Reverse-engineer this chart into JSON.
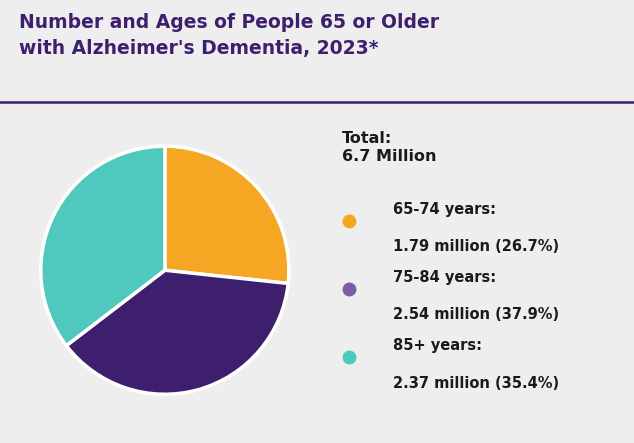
{
  "title_line1": "Number and Ages of People 65 or Older",
  "title_line2": "with Alzheimer's Dementia, 2023*",
  "title_color": "#3d1f6e",
  "title_fontsize": 13.5,
  "background_color": "#eeeeee",
  "title_bg_color": "#ffffff",
  "total_label": "Total:\n6.7 Million",
  "slices": [
    {
      "label": "65-74 years:",
      "sublabel": "1.79 million (26.7%)",
      "value": 26.7,
      "color": "#f5a623",
      "dot_color": "#f5a623"
    },
    {
      "label": "75-84 years:",
      "sublabel": "2.54 million (37.9%)",
      "value": 37.9,
      "color": "#3d1f6e",
      "dot_color": "#7b5ea7"
    },
    {
      "label": "85+ years:",
      "sublabel": "2.37 million (35.4%)",
      "value": 35.4,
      "color": "#4fc8be",
      "dot_color": "#4fc8be"
    }
  ],
  "startangle": 90,
  "text_color": "#1a1a1a",
  "separator_color": "#3d1f6e"
}
